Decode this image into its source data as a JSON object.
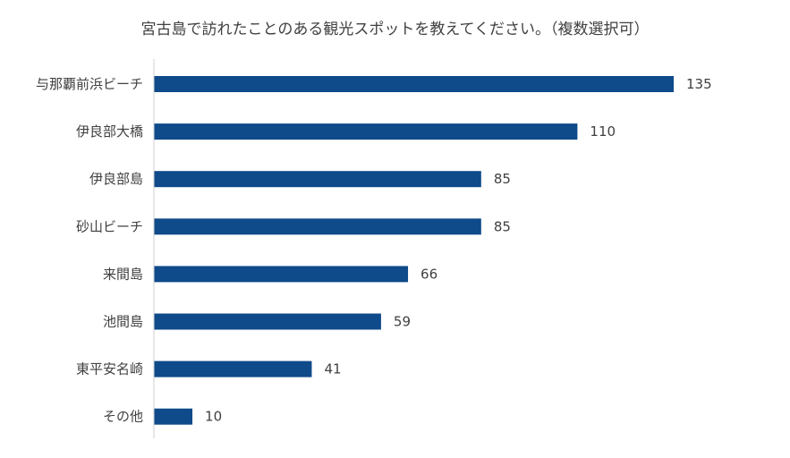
{
  "chart_data": {
    "type": "bar",
    "orientation": "horizontal",
    "title": "宮古島で訪れたことのある観光スポットを教えてください。（複数選択可）",
    "categories": [
      "与那覇前浜ビーチ",
      "伊良部大橋",
      "伊良部島",
      "砂山ビーチ",
      "来間島",
      "池間島",
      "東平安名崎",
      "その他"
    ],
    "values": [
      135,
      110,
      85,
      85,
      66,
      59,
      41,
      10
    ],
    "xlabel": "",
    "ylabel": "",
    "xlim": [
      0,
      135
    ],
    "grid": false,
    "legend": "none",
    "data_labels": true,
    "bar_color": "#0f4a8a",
    "axis_color": "#d0d0d0"
  }
}
